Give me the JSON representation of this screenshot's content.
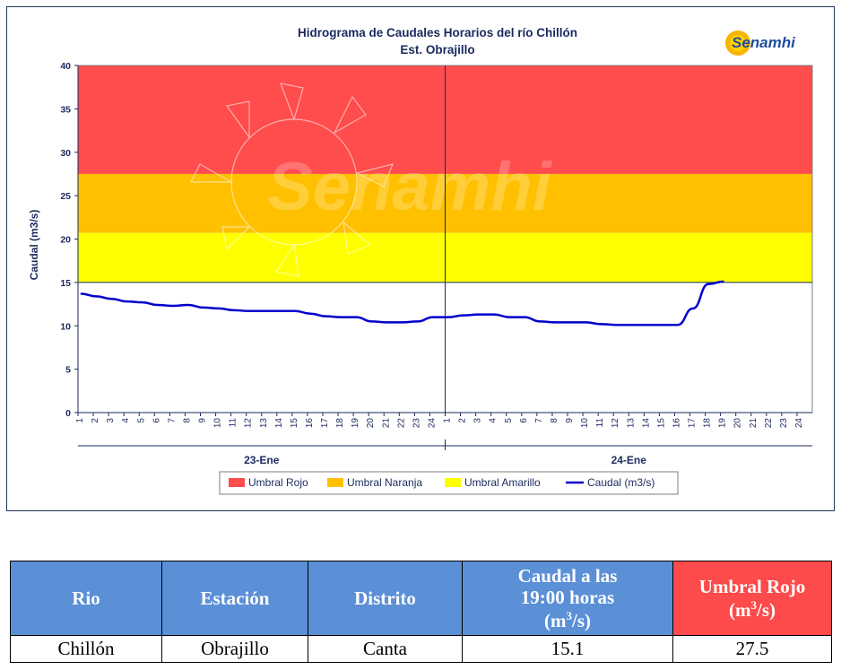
{
  "chart_data": {
    "type": "line",
    "title": "Hidrograma de Caudales Horarios del río Chillón",
    "subtitle": "Est. Obrajillo",
    "ylabel": "Caudal  (m3/s)",
    "ylim": [
      0,
      40
    ],
    "yticks": [
      0,
      5,
      10,
      15,
      20,
      25,
      30,
      35,
      40
    ],
    "days": [
      "23-Ene",
      "24-Ene"
    ],
    "x_tick_labels": [
      "1",
      "2",
      "3",
      "4",
      "5",
      "6",
      "7",
      "8",
      "9",
      "10",
      "11",
      "12",
      "13",
      "14",
      "15",
      "16",
      "17",
      "18",
      "19",
      "20",
      "21",
      "22",
      "23",
      "24"
    ],
    "thresholds": [
      {
        "name": "Umbral Rojo",
        "from": 27.5,
        "to": 40,
        "color": "#ff4c4c"
      },
      {
        "name": "Umbral Naranja",
        "from": 20.7,
        "to": 27.5,
        "color": "#ffc000"
      },
      {
        "name": "Umbral Amarillo",
        "from": 15.0,
        "to": 20.7,
        "color": "#ffff00"
      }
    ],
    "series": [
      {
        "name": "Caudal (m3/s)",
        "color": "#0000cc",
        "values": [
          13.7,
          13.4,
          13.1,
          12.8,
          12.7,
          12.4,
          12.3,
          12.4,
          12.1,
          12.0,
          11.8,
          11.7,
          11.7,
          11.7,
          11.7,
          11.4,
          11.1,
          11.0,
          11.0,
          10.5,
          10.4,
          10.4,
          10.5,
          11.0,
          11.0,
          11.2,
          11.3,
          11.3,
          11.0,
          11.0,
          10.5,
          10.4,
          10.4,
          10.4,
          10.2,
          10.1,
          10.1,
          10.1,
          10.1,
          10.1,
          12.0,
          14.8,
          15.1
        ]
      }
    ],
    "legend": [
      "Umbral Rojo",
      "Umbral Naranja",
      "Umbral Amarillo",
      "Caudal (m3/s)"
    ],
    "legend_position": "bottom",
    "grid": false
  },
  "logo": {
    "text": "Senamhi"
  },
  "watermark": {
    "text": "Senamhi"
  },
  "table": {
    "headers": {
      "rio": "Rio",
      "estacion": "Estación",
      "distrito": "Distrito",
      "caudal_line1": "Caudal a las",
      "caudal_line2": "19:00 horas",
      "caudal_unit_pre": "(m",
      "caudal_unit_sup": "3",
      "caudal_unit_post": "/s)",
      "umbral_line1": "Umbral Rojo",
      "umbral_unit_pre": "(m",
      "umbral_unit_sup": "3",
      "umbral_unit_post": "/s)"
    },
    "row": {
      "rio": "Chillón",
      "estacion": "Obrajillo",
      "distrito": "Canta",
      "caudal": "15.1",
      "umbral": "27.5"
    },
    "colors": {
      "header_blue": "#5b8fd6",
      "header_red": "#fd4a4a"
    }
  }
}
